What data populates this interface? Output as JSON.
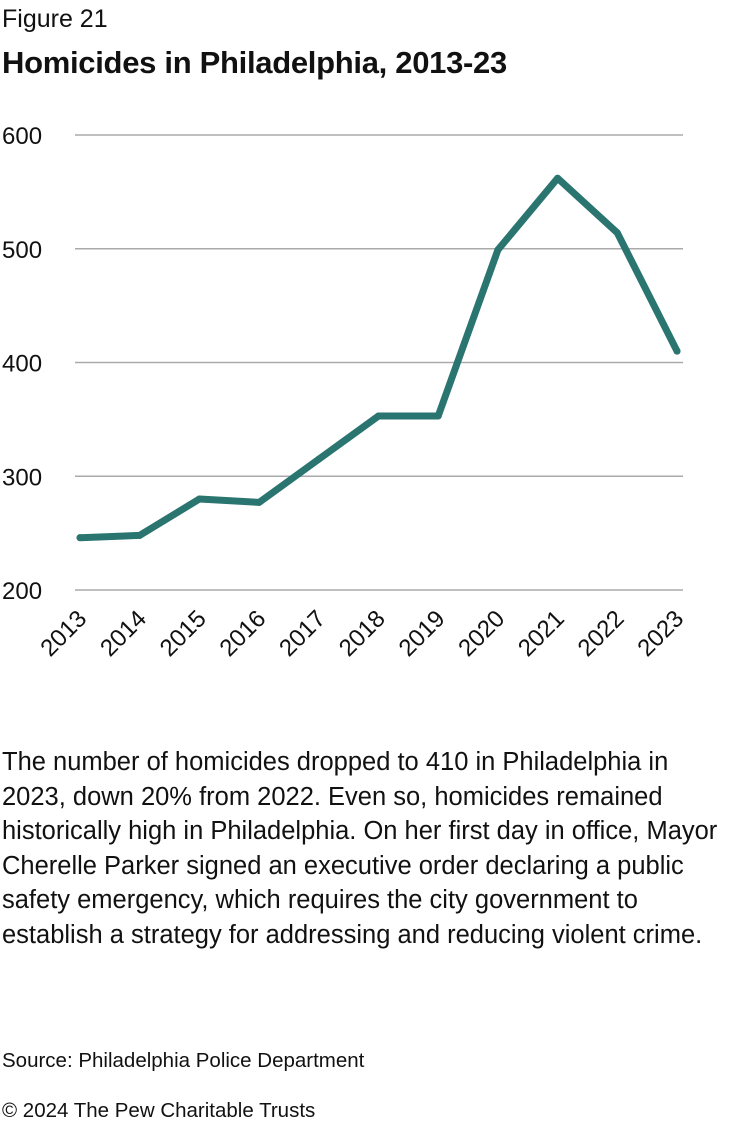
{
  "figure_label": "Figure 21",
  "title": "Homicides in Philadelphia, 2013-23",
  "description": "The number of homicides dropped to 410 in Philadelphia in 2023, down 20% from 2022. Even so, homicides remained historically high in Philadelphia. On her first day in office, Mayor Cherelle Parker signed an executive order declaring a public safety emergency, which requires the city government to establish a strategy for addressing and reducing violent crime.",
  "source": "Source: Philadelphia Police Department",
  "copyright": "© 2024 The Pew Charitable Trusts",
  "colors": {
    "line": "#2a7570",
    "grid": "#aaaaaa",
    "text": "#111111"
  },
  "chart_data": {
    "type": "line",
    "title": "Homicides in Philadelphia, 2013-23",
    "xlabel": "",
    "ylabel": "",
    "x": [
      "2013",
      "2014",
      "2015",
      "2016",
      "2017",
      "2018",
      "2019",
      "2020",
      "2021",
      "2022",
      "2023"
    ],
    "series": [
      {
        "values": [
          246,
          248,
          280,
          277,
          315,
          353,
          353,
          499,
          562,
          514,
          410
        ]
      }
    ],
    "ylim": [
      200,
      600
    ],
    "yticks": [
      200,
      300,
      400,
      500,
      600
    ],
    "grid": true,
    "legend": "none"
  }
}
